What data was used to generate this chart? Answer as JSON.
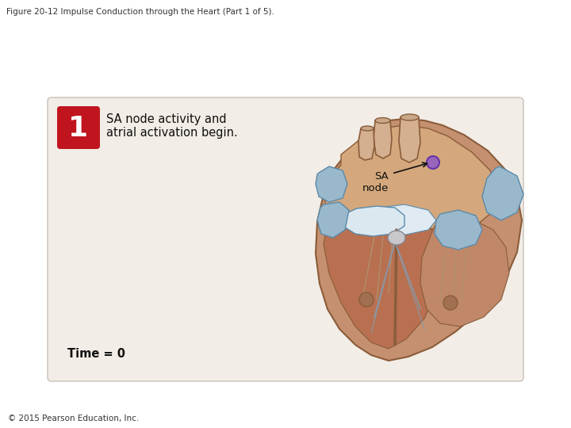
{
  "title": "Figure 20-12 Impulse Conduction through the Heart (Part 1 of 5).",
  "title_fontsize": 7.5,
  "title_color": "#333333",
  "copyright": "© 2015 Pearson Education, Inc.",
  "copyright_fontsize": 7.5,
  "step_number": "1",
  "step_bg_color": "#c0151f",
  "step_text_color": "#ffffff",
  "step_label": "SA node activity and\natrial activation begin.",
  "step_label_fontsize": 10.5,
  "time_label": "Time = 0",
  "time_label_fontsize": 10.5,
  "sa_label": "SA\nnode",
  "sa_label_fontsize": 9.5,
  "panel_bg_color": "#f2ede6",
  "panel_border_color": "#c8c0b8",
  "background_color": "#ffffff",
  "arrow_color": "#111111",
  "heart_outer_color": "#c49070",
  "heart_outer_edge": "#8a5c3a",
  "heart_inner_color": "#b87850",
  "heart_light_color": "#d4a87c",
  "vessel_color": "#d4b090",
  "vessel_edge": "#8a5c3a",
  "blue_tissue_color": "#9ab8cc",
  "blue_tissue_edge": "#5a8aaa",
  "white_tissue_color": "#dce8f0",
  "sa_node_color": "#9966bb",
  "sa_node_edge": "#6633aa",
  "av_node_color": "#c8c8cc",
  "av_node_edge": "#888890",
  "septum_color": "#8a5c3a",
  "bundle_color": "#8899aa"
}
